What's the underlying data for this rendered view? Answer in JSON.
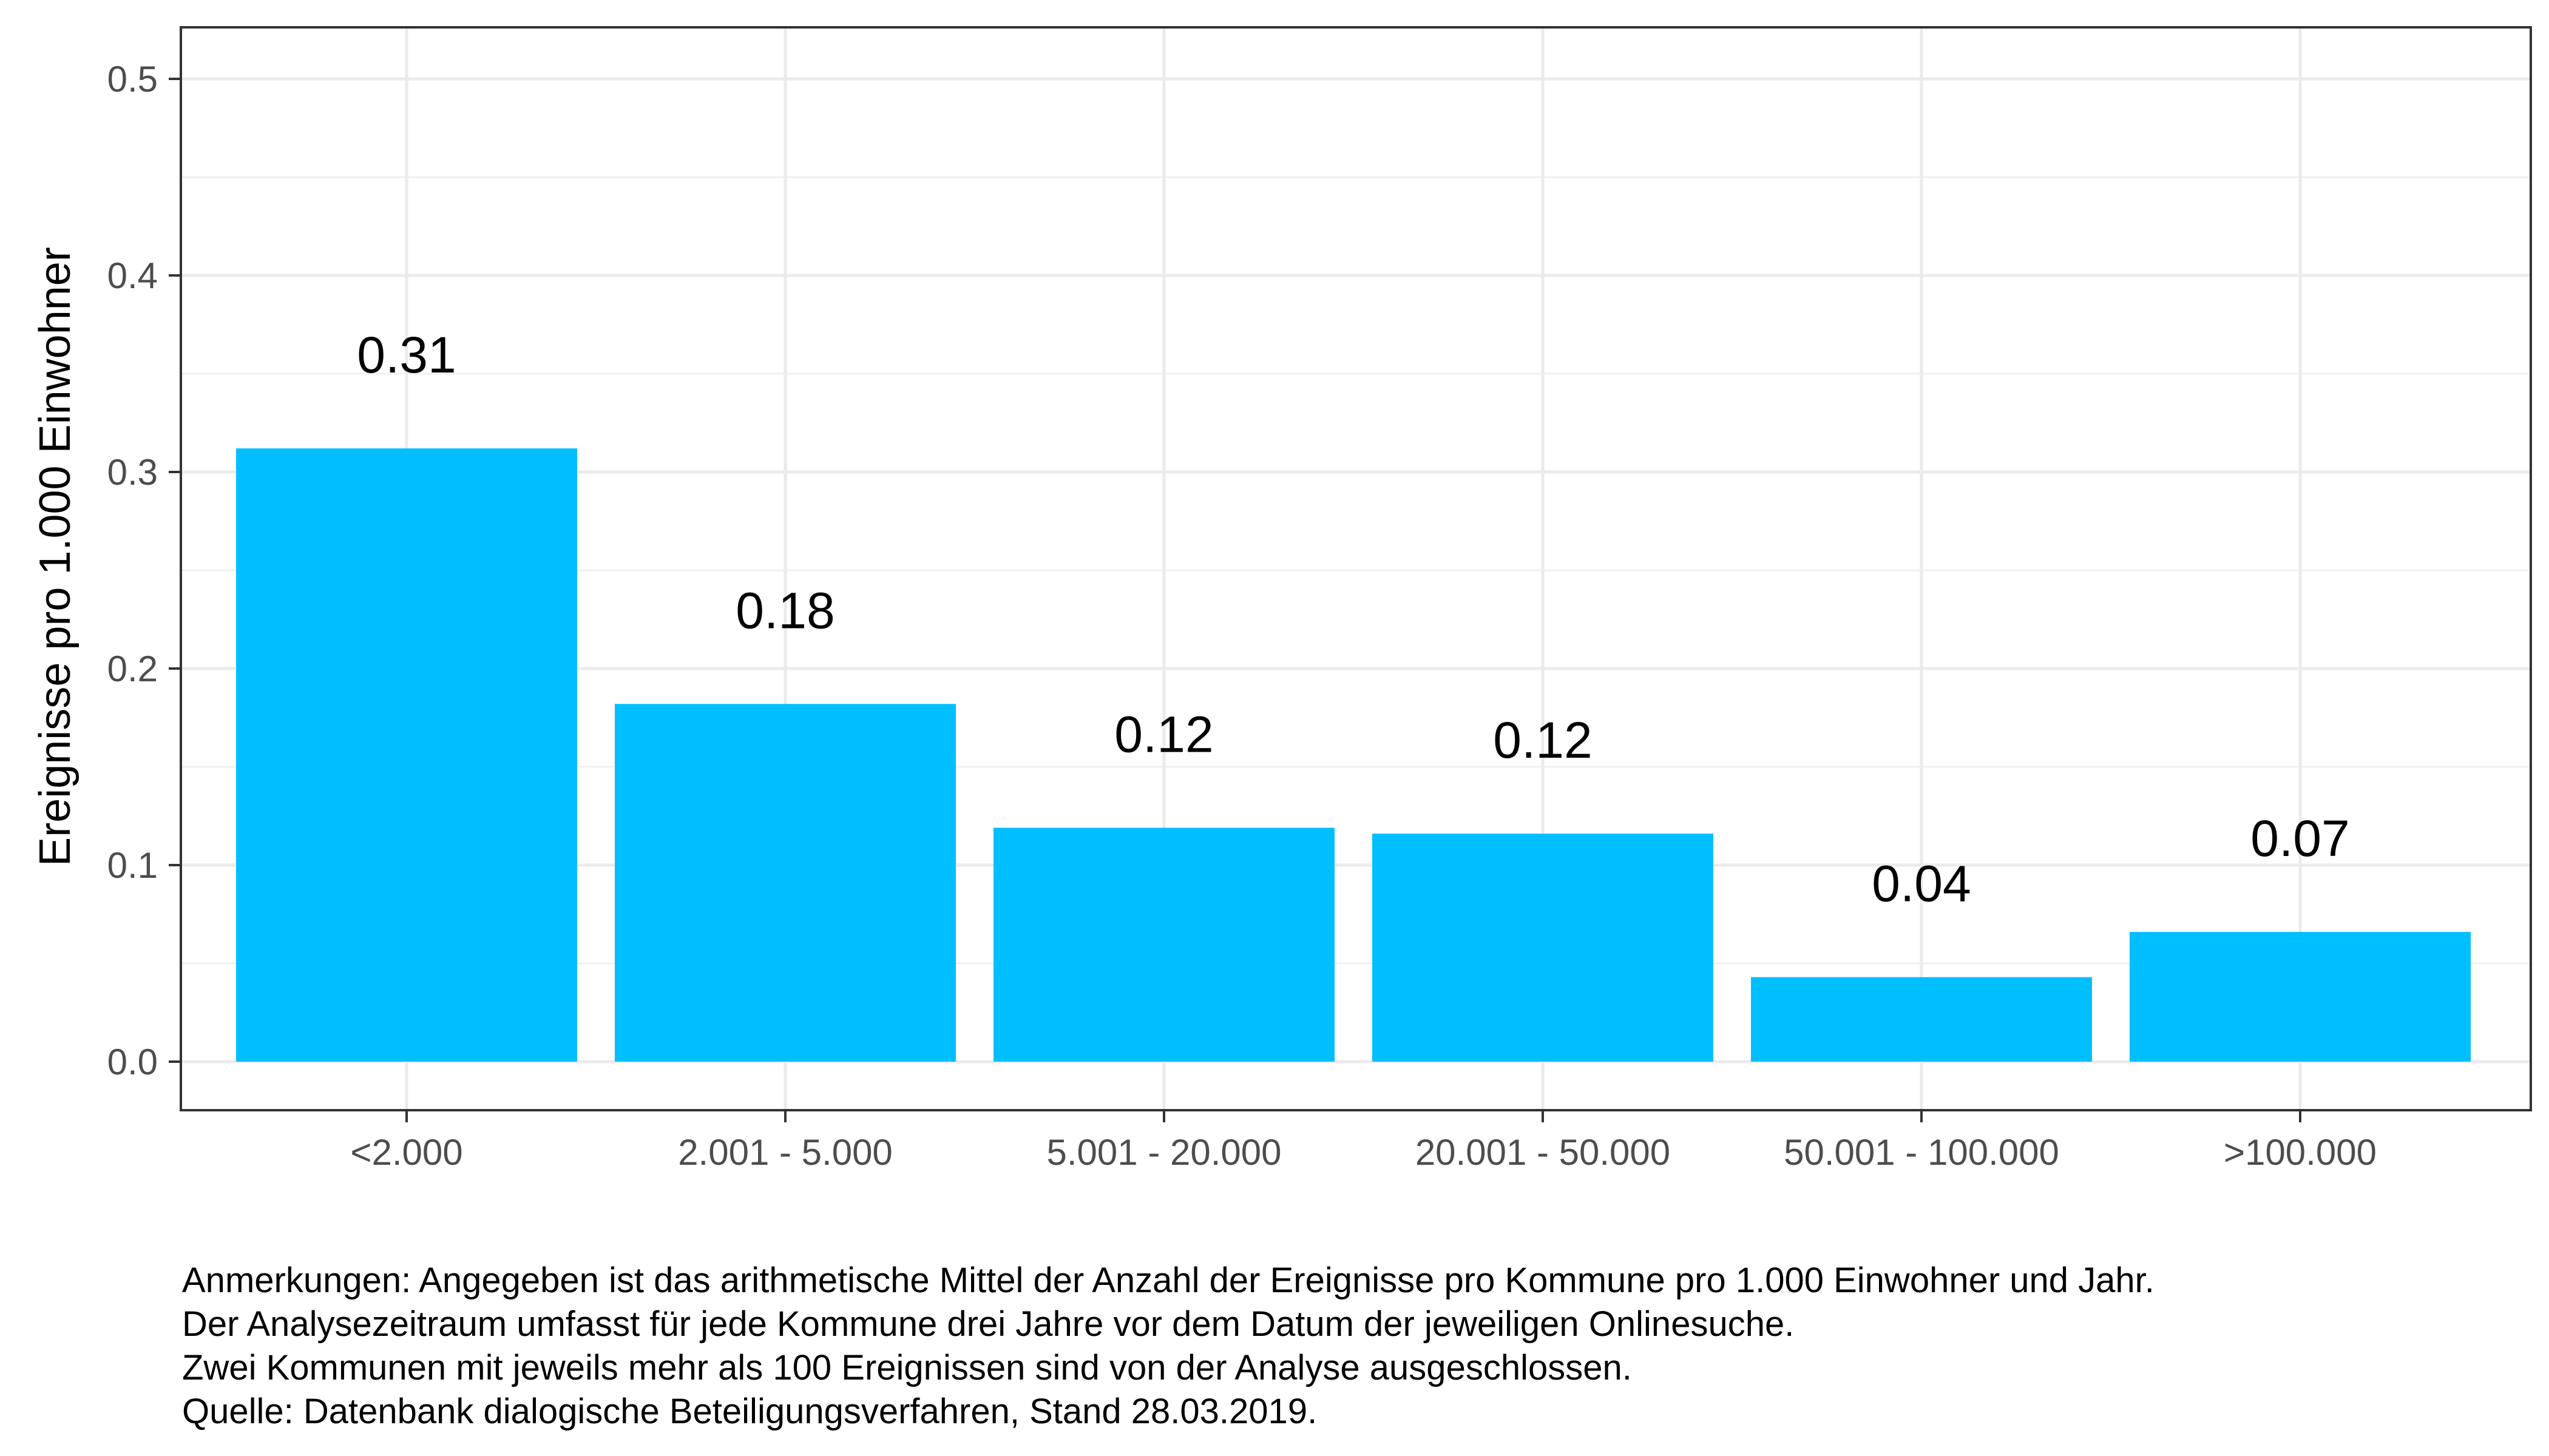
{
  "chart_data": {
    "type": "bar",
    "categories": [
      "<2.000",
      "2.001 - 5.000",
      "5.001 - 20.000",
      "20.001 - 50.000",
      "50.001 - 100.000",
      ">100.000"
    ],
    "values": [
      0.312,
      0.182,
      0.119,
      0.116,
      0.043,
      0.066
    ],
    "data_labels": [
      "0.31",
      "0.18",
      "0.12",
      "0.12",
      "0.04",
      "0.07"
    ],
    "title": "",
    "xlabel": "",
    "ylabel": "Ereignisse pro 1.000 Einwohner",
    "ylim": [
      0,
      0.5
    ],
    "yticks": [
      "0.0",
      "0.1",
      "0.2",
      "0.3",
      "0.4",
      "0.5"
    ],
    "grid": true,
    "legend": "none",
    "bar_color": "#00BFFF"
  },
  "notes": [
    "Anmerkungen: Angegeben ist das arithmetische Mittel der Anzahl der Ereignisse pro Kommune pro 1.000 Einwohner und Jahr.",
    "Der Analysezeitraum umfasst für jede Kommune drei Jahre vor dem Datum der jeweiligen Onlinesuche.",
    "Zwei Kommunen mit jeweils mehr als 100 Ereignissen sind von der Analyse ausgeschlossen.",
    "Quelle: Datenbank dialogische Beteiligungsverfahren, Stand 28.03.2019."
  ]
}
